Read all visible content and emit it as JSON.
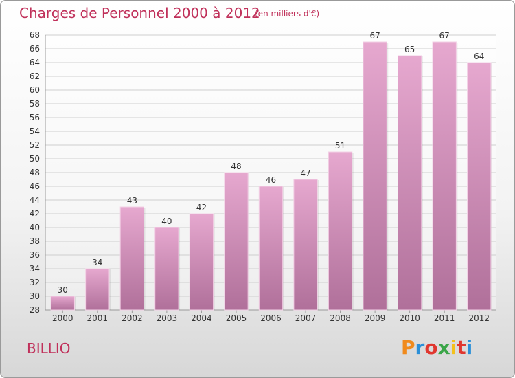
{
  "header": {
    "title": "Charges de Personnel 2000 à 2012",
    "subtitle": "(en milliers d'€)"
  },
  "footer": {
    "commune": "BILLIO",
    "logo_text": "Proxiti",
    "logo_colors": [
      "#f08a1c",
      "#2a8fd8",
      "#e0372f",
      "#3aa548",
      "#f3c11c",
      "#e0372f",
      "#2a8fd8"
    ]
  },
  "chart_data": {
    "type": "bar",
    "title": "Charges de Personnel 2000 à 2012",
    "subtitle": "(en milliers d'€)",
    "xlabel": "",
    "ylabel": "",
    "categories": [
      "2000",
      "2001",
      "2002",
      "2003",
      "2004",
      "2005",
      "2006",
      "2007",
      "2008",
      "2009",
      "2010",
      "2011",
      "2012"
    ],
    "values": [
      30,
      34,
      43,
      40,
      42,
      48,
      46,
      47,
      51,
      67,
      65,
      67,
      64
    ],
    "ylim": [
      28,
      68
    ],
    "yticks": [
      28,
      30,
      32,
      34,
      36,
      38,
      40,
      42,
      44,
      46,
      48,
      50,
      52,
      54,
      56,
      58,
      60,
      62,
      64,
      66,
      68
    ],
    "grid": true,
    "legend": "none",
    "bar_color_top": "#e6a8cf",
    "bar_color_bottom": "#b0709a"
  }
}
